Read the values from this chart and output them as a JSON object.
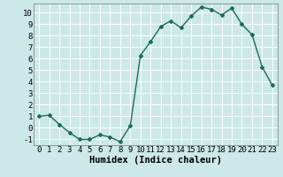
{
  "x": [
    0,
    1,
    2,
    3,
    4,
    5,
    6,
    7,
    8,
    9,
    10,
    11,
    12,
    13,
    14,
    15,
    16,
    17,
    18,
    19,
    20,
    21,
    22,
    23
  ],
  "y": [
    1.0,
    1.1,
    0.3,
    -0.4,
    -1.0,
    -1.0,
    -0.6,
    -0.8,
    -1.2,
    0.2,
    6.3,
    7.5,
    8.8,
    9.3,
    8.7,
    9.7,
    10.5,
    10.3,
    9.8,
    10.4,
    9.0,
    8.1,
    5.3,
    3.7
  ],
  "line_color": "#1a6b5a",
  "marker": "D",
  "markersize": 2.0,
  "bg_color": "#cce8e8",
  "grid_color": "#b0d4d4",
  "grid_white_color": "#ffffff",
  "xlabel": "Humidex (Indice chaleur)",
  "xlim": [
    -0.5,
    23.5
  ],
  "ylim": [
    -1.5,
    10.8
  ],
  "yticks": [
    -1,
    0,
    1,
    2,
    3,
    4,
    5,
    6,
    7,
    8,
    9,
    10
  ],
  "xticks": [
    0,
    1,
    2,
    3,
    4,
    5,
    6,
    7,
    8,
    9,
    10,
    11,
    12,
    13,
    14,
    15,
    16,
    17,
    18,
    19,
    20,
    21,
    22,
    23
  ],
  "xlabel_fontsize": 7.5,
  "tick_fontsize": 6.5,
  "linewidth": 1.0
}
